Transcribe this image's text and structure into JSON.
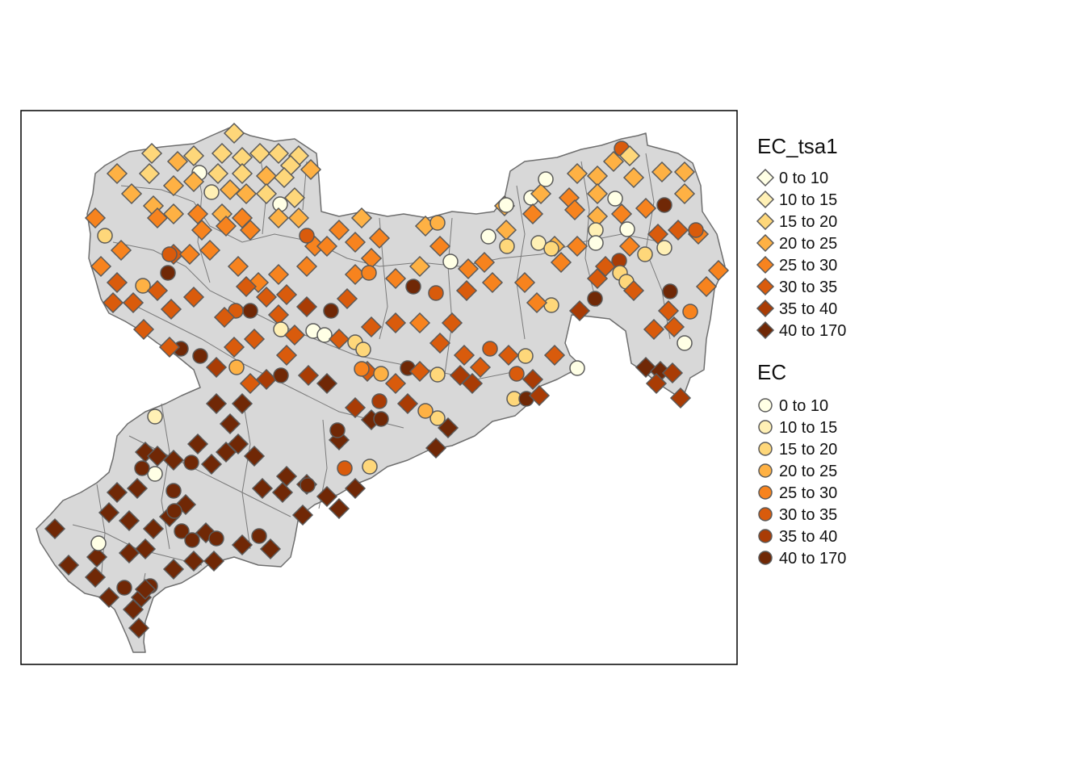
{
  "legends": [
    {
      "title": "EC_tsa1",
      "shape": "diamond",
      "items": [
        {
          "label": "0 to 10",
          "color": "#FFFFE5"
        },
        {
          "label": "10 to 15",
          "color": "#FFF0B5"
        },
        {
          "label": "15 to 20",
          "color": "#FED77A"
        },
        {
          "label": "20 to 25",
          "color": "#FEB144"
        },
        {
          "label": "25 to 30",
          "color": "#F7831E"
        },
        {
          "label": "30 to 35",
          "color": "#D95B0C"
        },
        {
          "label": "35 to 40",
          "color": "#A93C05"
        },
        {
          "label": "40 to 170",
          "color": "#702806"
        }
      ]
    },
    {
      "title": "EC",
      "shape": "circle",
      "items": [
        {
          "label": "0 to 10",
          "color": "#FFFFE5"
        },
        {
          "label": "10 to 15",
          "color": "#FFF0B5"
        },
        {
          "label": "15 to 20",
          "color": "#FED77A"
        },
        {
          "label": "20 to 25",
          "color": "#FEB144"
        },
        {
          "label": "25 to 30",
          "color": "#F7831E"
        },
        {
          "label": "30 to 35",
          "color": "#D95B0C"
        },
        {
          "label": "35 to 40",
          "color": "#A93C05"
        },
        {
          "label": "40 to 170",
          "color": "#702806"
        }
      ]
    }
  ],
  "colors": {
    "region_fill": "#D8D8D8",
    "region_border": "#6E6E6E",
    "symbol_border": "#5A5A5A",
    "frame": "#000000"
  }
}
